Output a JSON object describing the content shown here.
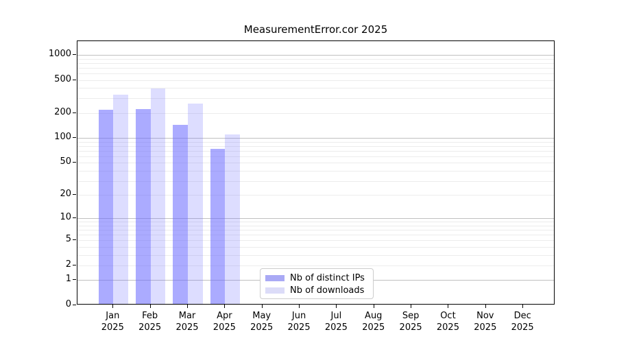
{
  "chart_data": {
    "type": "bar",
    "title": "MeasurementError.cor 2025",
    "year_label": "2025",
    "categories": [
      "Jan",
      "Feb",
      "Mar",
      "Apr",
      "May",
      "Jun",
      "Jul",
      "Aug",
      "Sep",
      "Oct",
      "Nov",
      "Dec"
    ],
    "series": [
      {
        "name": "Nb of distinct IPs",
        "effective_color": "#a9a9f5",
        "base_color": "#6666ff",
        "fill_opacity": 0.55,
        "values": [
          212,
          215,
          138,
          71,
          null,
          null,
          null,
          null,
          null,
          null,
          null,
          null
        ]
      },
      {
        "name": "Nb of downloads",
        "effective_color": "#dcdcf8",
        "base_color": "#6666ff",
        "fill_opacity": 0.22,
        "values": [
          322,
          378,
          251,
          107,
          null,
          null,
          null,
          null,
          null,
          null,
          null,
          null
        ]
      }
    ],
    "y_scale": "log1p",
    "y_ticks": [
      1000,
      500,
      200,
      100,
      50,
      20,
      10,
      5,
      2,
      1,
      0
    ],
    "y_major_gridlines": [
      1,
      10,
      100,
      1000
    ],
    "y_minor_gridlines": [
      2,
      3,
      4,
      5,
      6,
      7,
      8,
      9,
      20,
      30,
      40,
      50,
      60,
      70,
      80,
      90,
      200,
      300,
      400,
      500,
      600,
      700,
      800,
      900
    ],
    "ylim": [
      0,
      1460
    ],
    "grid": true,
    "legend_position": "lower center",
    "colors": {
      "axis": "#000000",
      "major_grid": "#c0c0c0",
      "minor_grid": "#ececec",
      "bar_distinct_ips": "#a9a9f5",
      "bar_downloads": "#dcdcf8"
    }
  },
  "legend": {
    "items": [
      {
        "label": "Nb of distinct IPs",
        "color": "#a9a9f5"
      },
      {
        "label": "Nb of downloads",
        "color": "#dcdcf8"
      }
    ]
  }
}
